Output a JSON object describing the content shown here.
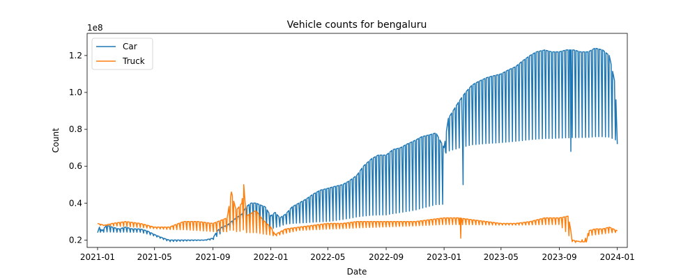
{
  "chart_data": {
    "type": "line",
    "title": "Vehicle counts for bengaluru",
    "xlabel": "Date",
    "ylabel": "Count",
    "y_offset_label": "1e8",
    "y_multiplier": 100000000,
    "xlim": [
      "2020-12-10",
      "2024-01-22"
    ],
    "ylim": [
      0.16,
      1.32
    ],
    "x_ticks": [
      "2021-01",
      "2021-05",
      "2021-09",
      "2022-01",
      "2022-05",
      "2022-09",
      "2023-01",
      "2023-05",
      "2023-09",
      "2024-01"
    ],
    "y_ticks": [
      0.2,
      0.4,
      0.6,
      0.8,
      1.0,
      1.2
    ],
    "y_tick_labels": [
      "0.2",
      "0.4",
      "0.6",
      "0.8",
      "1.0",
      "1.2"
    ],
    "legend_position": "upper-left",
    "grid": false,
    "series": [
      {
        "name": "Car",
        "color": "#1f77b4",
        "points": [
          [
            "2021-01-01",
            0.24
          ],
          [
            "2021-01-05",
            0.27
          ],
          [
            "2021-01-10",
            0.25
          ],
          [
            "2021-01-20",
            0.28
          ],
          [
            "2021-02-01",
            0.27
          ],
          [
            "2021-02-15",
            0.26
          ],
          [
            "2021-03-01",
            0.27
          ],
          [
            "2021-03-15",
            0.26
          ],
          [
            "2021-04-01",
            0.26
          ],
          [
            "2021-04-15",
            0.25
          ],
          [
            "2021-05-01",
            0.23
          ],
          [
            "2021-05-10",
            0.22
          ],
          [
            "2021-05-20",
            0.21
          ],
          [
            "2021-06-01",
            0.2
          ],
          [
            "2021-06-15",
            0.2
          ],
          [
            "2021-07-01",
            0.2
          ],
          [
            "2021-07-15",
            0.2
          ],
          [
            "2021-08-01",
            0.2
          ],
          [
            "2021-08-15",
            0.2
          ],
          [
            "2021-09-01",
            0.21
          ],
          [
            "2021-09-10",
            0.25
          ],
          [
            "2021-09-20",
            0.27
          ],
          [
            "2021-10-01",
            0.28
          ],
          [
            "2021-10-10",
            0.3
          ],
          [
            "2021-10-20",
            0.32
          ],
          [
            "2021-11-01",
            0.34
          ],
          [
            "2021-11-10",
            0.38
          ],
          [
            "2021-11-20",
            0.4
          ],
          [
            "2021-12-01",
            0.4
          ],
          [
            "2021-12-10",
            0.39
          ],
          [
            "2021-12-20",
            0.38
          ],
          [
            "2022-01-01",
            0.33
          ],
          [
            "2022-01-10",
            0.35
          ],
          [
            "2022-01-20",
            0.32
          ],
          [
            "2022-02-01",
            0.34
          ],
          [
            "2022-02-15",
            0.38
          ],
          [
            "2022-03-01",
            0.4
          ],
          [
            "2022-03-15",
            0.42
          ],
          [
            "2022-04-01",
            0.45
          ],
          [
            "2022-04-15",
            0.47
          ],
          [
            "2022-05-01",
            0.48
          ],
          [
            "2022-05-15",
            0.49
          ],
          [
            "2022-06-01",
            0.5
          ],
          [
            "2022-06-15",
            0.52
          ],
          [
            "2022-07-01",
            0.55
          ],
          [
            "2022-07-15",
            0.6
          ],
          [
            "2022-08-01",
            0.64
          ],
          [
            "2022-08-15",
            0.66
          ],
          [
            "2022-09-01",
            0.66
          ],
          [
            "2022-09-15",
            0.69
          ],
          [
            "2022-10-01",
            0.7
          ],
          [
            "2022-10-15",
            0.72
          ],
          [
            "2022-11-01",
            0.74
          ],
          [
            "2022-11-15",
            0.76
          ],
          [
            "2022-12-01",
            0.77
          ],
          [
            "2022-12-15",
            0.78
          ],
          [
            "2023-01-01",
            0.7
          ],
          [
            "2023-01-10",
            0.86
          ],
          [
            "2023-01-20",
            0.9
          ],
          [
            "2023-02-01",
            0.95
          ],
          [
            "2023-02-15",
            1.0
          ],
          [
            "2023-03-01",
            1.04
          ],
          [
            "2023-03-15",
            1.06
          ],
          [
            "2023-04-01",
            1.08
          ],
          [
            "2023-04-15",
            1.09
          ],
          [
            "2023-05-01",
            1.1
          ],
          [
            "2023-05-15",
            1.12
          ],
          [
            "2023-06-01",
            1.14
          ],
          [
            "2023-06-15",
            1.17
          ],
          [
            "2023-07-01",
            1.2
          ],
          [
            "2023-07-15",
            1.22
          ],
          [
            "2023-08-01",
            1.23
          ],
          [
            "2023-08-15",
            1.22
          ],
          [
            "2023-09-01",
            1.22
          ],
          [
            "2023-09-15",
            1.23
          ],
          [
            "2023-10-01",
            1.23
          ],
          [
            "2023-10-15",
            1.22
          ],
          [
            "2023-11-01",
            1.22
          ],
          [
            "2023-11-15",
            1.24
          ],
          [
            "2023-12-01",
            1.23
          ],
          [
            "2023-12-15",
            1.2
          ],
          [
            "2023-12-28",
            1.04
          ],
          [
            "2024-01-01",
            0.72
          ]
        ],
        "weekly_trough": [
          [
            "2021-01-01",
            0.24
          ],
          [
            "2021-04-01",
            0.24
          ],
          [
            "2021-05-01",
            0.22
          ],
          [
            "2021-06-01",
            0.19
          ],
          [
            "2021-09-01",
            0.2
          ],
          [
            "2021-10-01",
            0.26
          ],
          [
            "2021-11-15",
            0.3
          ],
          [
            "2022-01-01",
            0.25
          ],
          [
            "2022-02-01",
            0.28
          ],
          [
            "2022-05-01",
            0.28
          ],
          [
            "2022-07-01",
            0.3
          ],
          [
            "2022-09-01",
            0.3
          ],
          [
            "2022-11-01",
            0.32
          ],
          [
            "2023-01-01",
            0.36
          ],
          [
            "2023-01-05",
            0.66
          ],
          [
            "2023-03-01",
            0.68
          ],
          [
            "2023-06-01",
            0.69
          ],
          [
            "2023-09-01",
            0.7
          ],
          [
            "2023-12-31",
            0.71
          ]
        ],
        "events": [
          [
            "2023-02-10",
            0.5
          ],
          [
            "2023-09-25",
            0.68
          ]
        ]
      },
      {
        "name": "Truck",
        "color": "#ff7f0e",
        "points": [
          [
            "2021-01-01",
            0.29
          ],
          [
            "2021-01-15",
            0.28
          ],
          [
            "2021-02-01",
            0.29
          ],
          [
            "2021-03-01",
            0.3
          ],
          [
            "2021-04-01",
            0.29
          ],
          [
            "2021-05-01",
            0.27
          ],
          [
            "2021-06-01",
            0.27
          ],
          [
            "2021-07-01",
            0.3
          ],
          [
            "2021-08-01",
            0.3
          ],
          [
            "2021-09-01",
            0.29
          ],
          [
            "2021-10-01",
            0.32
          ],
          [
            "2021-10-10",
            0.46
          ],
          [
            "2021-10-20",
            0.36
          ],
          [
            "2021-11-01",
            0.4
          ],
          [
            "2021-11-05",
            0.5
          ],
          [
            "2021-11-10",
            0.33
          ],
          [
            "2021-12-01",
            0.36
          ],
          [
            "2021-12-15",
            0.31
          ],
          [
            "2022-01-01",
            0.27
          ],
          [
            "2022-01-10",
            0.23
          ],
          [
            "2022-02-01",
            0.26
          ],
          [
            "2022-03-01",
            0.27
          ],
          [
            "2022-04-01",
            0.28
          ],
          [
            "2022-05-01",
            0.29
          ],
          [
            "2022-06-01",
            0.29
          ],
          [
            "2022-07-01",
            0.3
          ],
          [
            "2022-08-01",
            0.3
          ],
          [
            "2022-09-01",
            0.3
          ],
          [
            "2022-10-01",
            0.3
          ],
          [
            "2022-11-01",
            0.3
          ],
          [
            "2022-12-01",
            0.31
          ],
          [
            "2023-01-01",
            0.32
          ],
          [
            "2023-02-01",
            0.32
          ],
          [
            "2023-03-01",
            0.31
          ],
          [
            "2023-04-01",
            0.3
          ],
          [
            "2023-05-01",
            0.29
          ],
          [
            "2023-06-01",
            0.29
          ],
          [
            "2023-07-01",
            0.3
          ],
          [
            "2023-08-01",
            0.32
          ],
          [
            "2023-09-01",
            0.32
          ],
          [
            "2023-09-20",
            0.33
          ],
          [
            "2023-09-28",
            0.2
          ],
          [
            "2023-10-15",
            0.19
          ],
          [
            "2023-10-28",
            0.19
          ],
          [
            "2023-11-01",
            0.25
          ],
          [
            "2023-11-15",
            0.26
          ],
          [
            "2023-12-01",
            0.26
          ],
          [
            "2023-12-15",
            0.27
          ],
          [
            "2024-01-01",
            0.25
          ]
        ],
        "weekly_trough": [
          [
            "2021-01-01",
            0.28
          ],
          [
            "2022-01-10",
            0.22
          ],
          [
            "2022-03-01",
            0.25
          ],
          [
            "2023-01-01",
            0.28
          ],
          [
            "2023-09-01",
            0.28
          ],
          [
            "2023-10-01",
            0.18
          ],
          [
            "2023-11-01",
            0.22
          ],
          [
            "2023-12-31",
            0.24
          ]
        ],
        "events": [
          [
            "2023-02-05",
            0.21
          ]
        ]
      }
    ]
  }
}
